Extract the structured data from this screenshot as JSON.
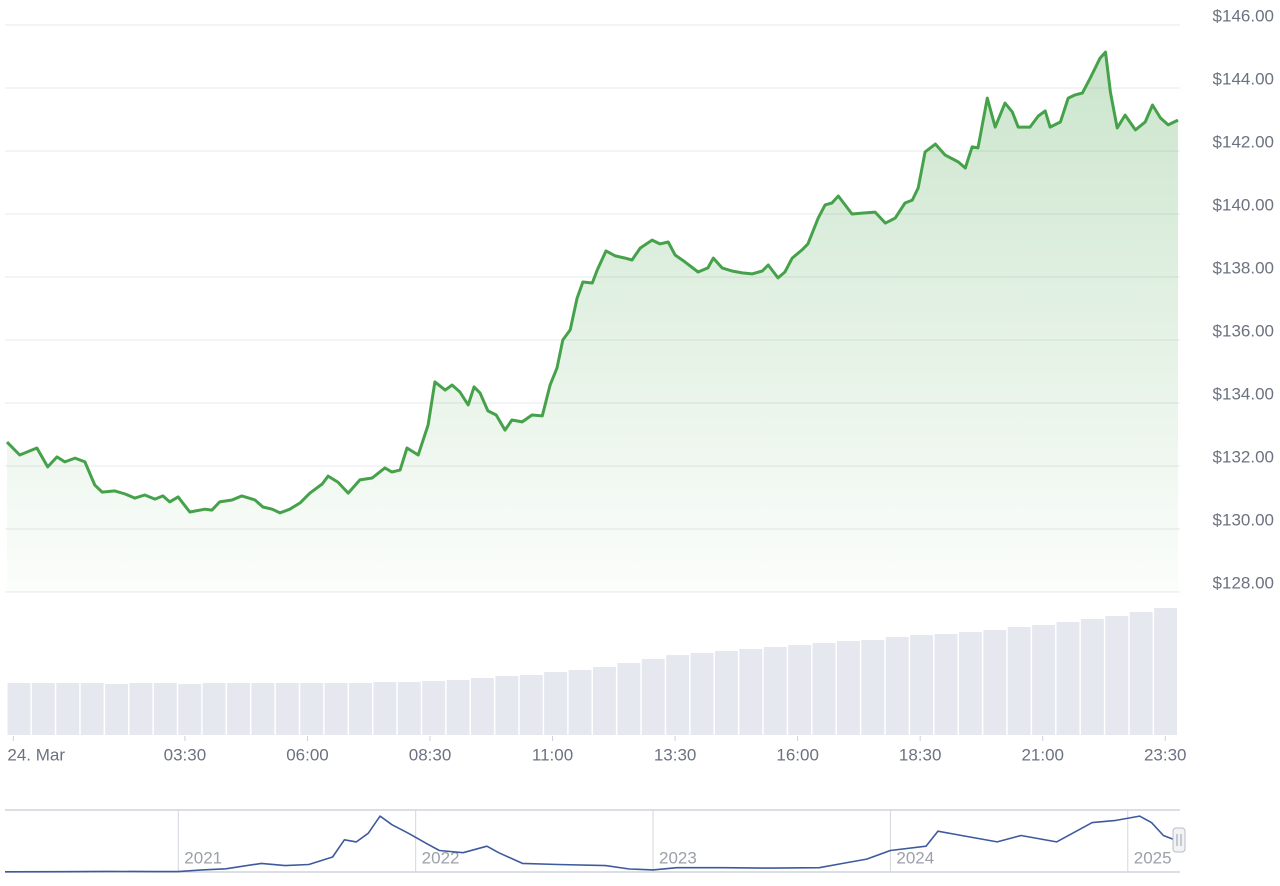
{
  "chart_data": [
    {
      "type": "area",
      "color": "#46a24a",
      "grid": "y",
      "x": [
        -0.13,
        0.13,
        0.48,
        0.7,
        0.89,
        1.05,
        1.26,
        1.46,
        1.66,
        1.81,
        2.07,
        2.28,
        2.48,
        2.68,
        2.89,
        3.05,
        3.19,
        3.36,
        3.6,
        3.91,
        4.05,
        4.21,
        4.46,
        4.66,
        4.93,
        5.09,
        5.28,
        5.44,
        5.64,
        5.85,
        6.05,
        6.3,
        6.42,
        6.62,
        6.83,
        7.07,
        7.32,
        7.58,
        7.72,
        7.89,
        8.03,
        8.26,
        8.46,
        8.6,
        8.81,
        8.95,
        9.11,
        9.28,
        9.4,
        9.52,
        9.68,
        9.85,
        10.03,
        10.17,
        10.38,
        10.58,
        10.79,
        10.95,
        11.09,
        11.21,
        11.36,
        11.5,
        11.62,
        11.81,
        11.91,
        12.09,
        12.28,
        12.48,
        12.62,
        12.79,
        13.03,
        13.19,
        13.36,
        13.5,
        13.7,
        13.97,
        14.17,
        14.28,
        14.46,
        14.66,
        14.87,
        15.07,
        15.28,
        15.4,
        15.6,
        15.74,
        15.89,
        16.09,
        16.21,
        16.42,
        16.56,
        16.7,
        16.83,
        17.11,
        17.32,
        17.58,
        17.79,
        17.99,
        18.19,
        18.34,
        18.46,
        18.6,
        18.81,
        19.01,
        19.28,
        19.42,
        19.56,
        19.68,
        19.87,
        20.03,
        20.23,
        20.38,
        20.5,
        20.74,
        20.91,
        21.05,
        21.15,
        21.36,
        21.52,
        21.66,
        21.81,
        21.97,
        22.17,
        22.28,
        22.38,
        22.52,
        22.68,
        22.89,
        23.09,
        23.24,
        23.4,
        23.56,
        23.76
      ],
      "values": [
        132.76,
        132.35,
        132.57,
        131.97,
        132.29,
        132.13,
        132.25,
        132.13,
        131.4,
        131.17,
        131.21,
        131.11,
        130.98,
        131.08,
        130.95,
        131.05,
        130.86,
        131.02,
        130.54,
        130.63,
        130.6,
        130.86,
        130.92,
        131.05,
        130.92,
        130.7,
        130.63,
        130.51,
        130.63,
        130.83,
        131.14,
        131.43,
        131.68,
        131.49,
        131.14,
        131.56,
        131.62,
        131.94,
        131.81,
        131.87,
        132.57,
        132.35,
        133.3,
        134.67,
        134.41,
        134.57,
        134.35,
        133.94,
        134.51,
        134.32,
        133.75,
        133.62,
        133.14,
        133.46,
        133.4,
        133.62,
        133.59,
        134.57,
        135.11,
        136.0,
        136.32,
        137.33,
        137.84,
        137.81,
        138.22,
        138.83,
        138.67,
        138.6,
        138.54,
        138.92,
        139.17,
        139.05,
        139.11,
        138.7,
        138.48,
        138.16,
        138.29,
        138.6,
        138.29,
        138.19,
        138.13,
        138.1,
        138.19,
        138.38,
        137.97,
        138.16,
        138.6,
        138.86,
        139.05,
        139.87,
        140.29,
        140.35,
        140.57,
        140.0,
        140.03,
        140.06,
        139.71,
        139.87,
        140.35,
        140.44,
        140.83,
        141.97,
        142.22,
        141.87,
        141.65,
        141.46,
        142.13,
        142.1,
        143.68,
        142.76,
        143.52,
        143.24,
        142.76,
        142.76,
        143.11,
        143.27,
        142.76,
        142.92,
        143.68,
        143.78,
        143.84,
        144.32,
        144.95,
        145.14,
        143.87,
        142.73,
        143.14,
        142.67,
        142.92,
        143.46,
        143.05,
        142.83,
        142.98
      ],
      "xlim": [
        -0.13,
        23.76
      ],
      "xticks": [
        {
          "value": 0,
          "label": "24. Mar"
        },
        {
          "value": 3.5,
          "label": "03:30"
        },
        {
          "value": 6,
          "label": "06:00"
        },
        {
          "value": 8.5,
          "label": "08:30"
        },
        {
          "value": 11,
          "label": "11:00"
        },
        {
          "value": 13.5,
          "label": "13:30"
        },
        {
          "value": 16,
          "label": "16:00"
        },
        {
          "value": 18.5,
          "label": "18:30"
        },
        {
          "value": 21,
          "label": "21:00"
        },
        {
          "value": 23.5,
          "label": "23:30"
        }
      ],
      "ylim": [
        128,
        146
      ],
      "yticks": [
        {
          "value": 128,
          "label": "$128.00"
        },
        {
          "value": 130,
          "label": "$130.00"
        },
        {
          "value": 132,
          "label": "$132.00"
        },
        {
          "value": 134,
          "label": "$134.00"
        },
        {
          "value": 136,
          "label": "$136.00"
        },
        {
          "value": 138,
          "label": "$138.00"
        },
        {
          "value": 140,
          "label": "$140.00"
        },
        {
          "value": 142,
          "label": "$142.00"
        },
        {
          "value": 144,
          "label": "$144.00"
        },
        {
          "value": 146,
          "label": "$146.00"
        }
      ]
    },
    {
      "type": "bar",
      "color": "#e6e8ef",
      "ylim": [
        0,
        130
      ],
      "values": [
        52,
        52,
        52,
        52,
        51,
        52,
        52,
        51,
        52,
        52,
        52,
        52,
        52,
        52,
        52,
        53,
        53,
        54,
        55,
        57,
        59,
        60,
        63,
        65,
        68,
        72,
        76,
        80,
        82,
        84,
        86,
        88,
        90,
        92,
        94,
        95,
        98,
        100,
        101,
        103,
        105,
        108,
        110,
        113,
        116,
        119,
        123,
        127
      ]
    },
    {
      "type": "line",
      "color": "#3e5a9e",
      "grid": "x",
      "x": [
        2020.27,
        2020.5,
        2020.7,
        2020.9,
        2021.0,
        2021.1,
        2021.2,
        2021.35,
        2021.45,
        2021.55,
        2021.65,
        2021.7,
        2021.75,
        2021.8,
        2021.85,
        2021.9,
        2021.97,
        2022.05,
        2022.1,
        2022.2,
        2022.3,
        2022.35,
        2022.45,
        2022.6,
        2022.8,
        2022.9,
        2023.0,
        2023.1,
        2023.3,
        2023.5,
        2023.7,
        2023.8,
        2023.9,
        2024.0,
        2024.15,
        2024.2,
        2024.3,
        2024.45,
        2024.55,
        2024.7,
        2024.85,
        2024.95,
        2025.05,
        2025.1,
        2025.15,
        2025.22
      ],
      "values": [
        1,
        1.5,
        3,
        2,
        2,
        10,
        15,
        40,
        30,
        35,
        70,
        150,
        140,
        180,
        260,
        220,
        180,
        130,
        100,
        90,
        120,
        90,
        40,
        35,
        30,
        14,
        10,
        20,
        20,
        18,
        20,
        40,
        60,
        100,
        120,
        190,
        170,
        140,
        170,
        140,
        230,
        240,
        260,
        230,
        170,
        140
      ],
      "xlim": [
        2020.27,
        2025.22
      ],
      "xticks": [
        2021,
        2022,
        2023,
        2024,
        2025
      ],
      "ylim": [
        0,
        270
      ]
    }
  ]
}
